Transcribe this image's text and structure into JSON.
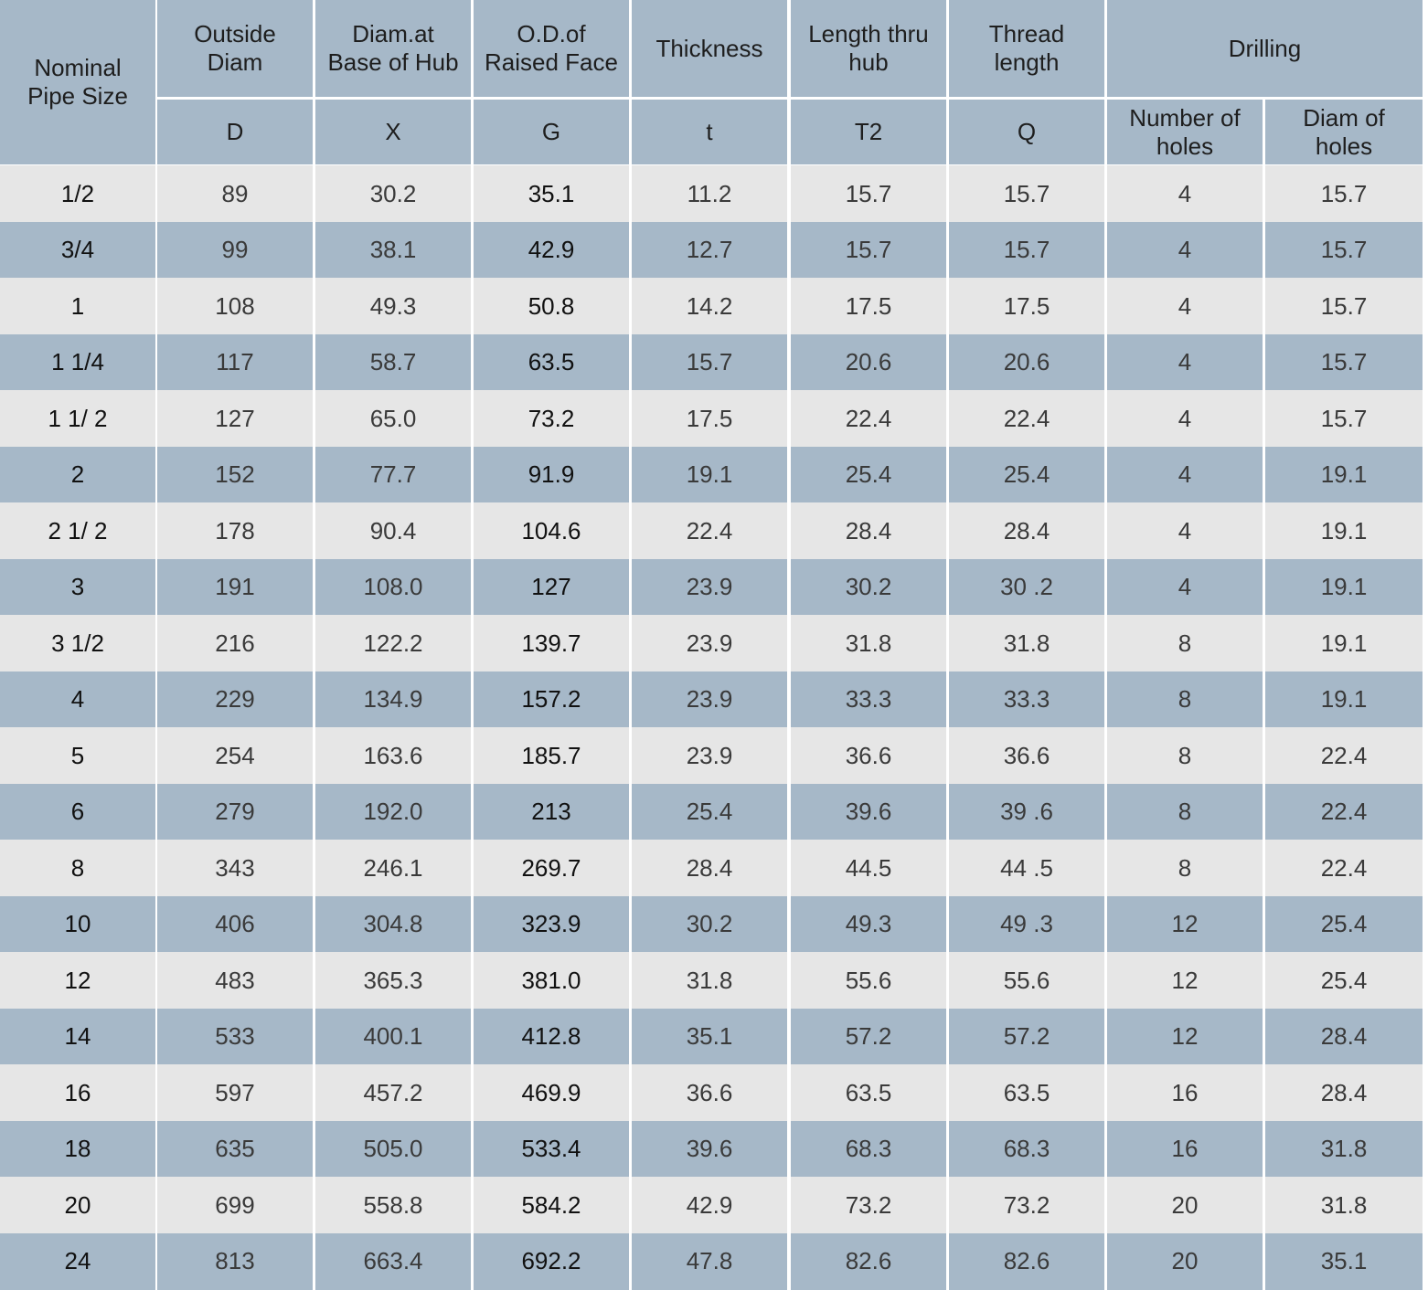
{
  "header": {
    "columns": [
      "Nominal\nPipe Size",
      "Outside\nDiam",
      "Diam.at\nBase of Hub",
      "O.D.of\nRaised Face",
      "Thickness",
      "Length  thru\nhub",
      "Thread\nlength"
    ],
    "group": "Drilling",
    "symbols": [
      "D",
      "X",
      "G",
      "t",
      "T2",
      "Q",
      "Number of\nholes",
      "Diam of\nholes"
    ]
  },
  "table": {
    "rows": [
      [
        "1/2",
        "89",
        "30.2",
        "35.1",
        "11.2",
        "15.7",
        "15.7",
        "4",
        "15.7"
      ],
      [
        "3/4",
        "99",
        "38.1",
        "42.9",
        "12.7",
        "15.7",
        "15.7",
        "4",
        "15.7"
      ],
      [
        "1",
        "108",
        "49.3",
        "50.8",
        "14.2",
        "17.5",
        "17.5",
        "4",
        "15.7"
      ],
      [
        "1 1/4",
        "117",
        "58.7",
        "63.5",
        "15.7",
        "20.6",
        "20.6",
        "4",
        "15.7"
      ],
      [
        "1 1/ 2",
        "127",
        "65.0",
        "73.2",
        "17.5",
        "22.4",
        "22.4",
        "4",
        "15.7"
      ],
      [
        "2",
        "152",
        "77.7",
        "91.9",
        "19.1",
        "25.4",
        "25.4",
        "4",
        "19.1"
      ],
      [
        "2 1/ 2",
        "178",
        "90.4",
        "104.6",
        "22.4",
        "28.4",
        "28.4",
        "4",
        "19.1"
      ],
      [
        "3",
        "191",
        "108.0",
        "127",
        "23.9",
        "30.2",
        "30 .2",
        "4",
        "19.1"
      ],
      [
        "3 1/2",
        "216",
        "122.2",
        "139.7",
        "23.9",
        "31.8",
        "31.8",
        "8",
        "19.1"
      ],
      [
        "4",
        "229",
        "134.9",
        "157.2",
        "23.9",
        "33.3",
        "33.3",
        "8",
        "19.1"
      ],
      [
        "5",
        "254",
        "163.6",
        "185.7",
        "23.9",
        "36.6",
        "36.6",
        "8",
        "22.4"
      ],
      [
        "6",
        "279",
        "192.0",
        "213",
        "25.4",
        "39.6",
        "39 .6",
        "8",
        "22.4"
      ],
      [
        "8",
        "343",
        "246.1",
        "269.7",
        "28.4",
        "44.5",
        "44 .5",
        "8",
        "22.4"
      ],
      [
        "10",
        "406",
        "304.8",
        "323.9",
        "30.2",
        "49.3",
        "49 .3",
        "12",
        "25.4"
      ],
      [
        "12",
        "483",
        "365.3",
        "381.0",
        "31.8",
        "55.6",
        "55.6",
        "12",
        "25.4"
      ],
      [
        "14",
        "533",
        "400.1",
        "412.8",
        "35.1",
        "57.2",
        "57.2",
        "12",
        "28.4"
      ],
      [
        "16",
        "597",
        "457.2",
        "469.9",
        "36.6",
        "63.5",
        "63.5",
        "16",
        "28.4"
      ],
      [
        "18",
        "635",
        "505.0",
        "533.4",
        "39.6",
        "68.3",
        "68.3",
        "16",
        "31.8"
      ],
      [
        "20",
        "699",
        "558.8",
        "584.2",
        "42.9",
        "73.2",
        "73.2",
        "20",
        "31.8"
      ],
      [
        "24",
        "813",
        "663.4",
        "692.2",
        "47.8",
        "82.6",
        "82.6",
        "20",
        "35.1"
      ]
    ]
  }
}
